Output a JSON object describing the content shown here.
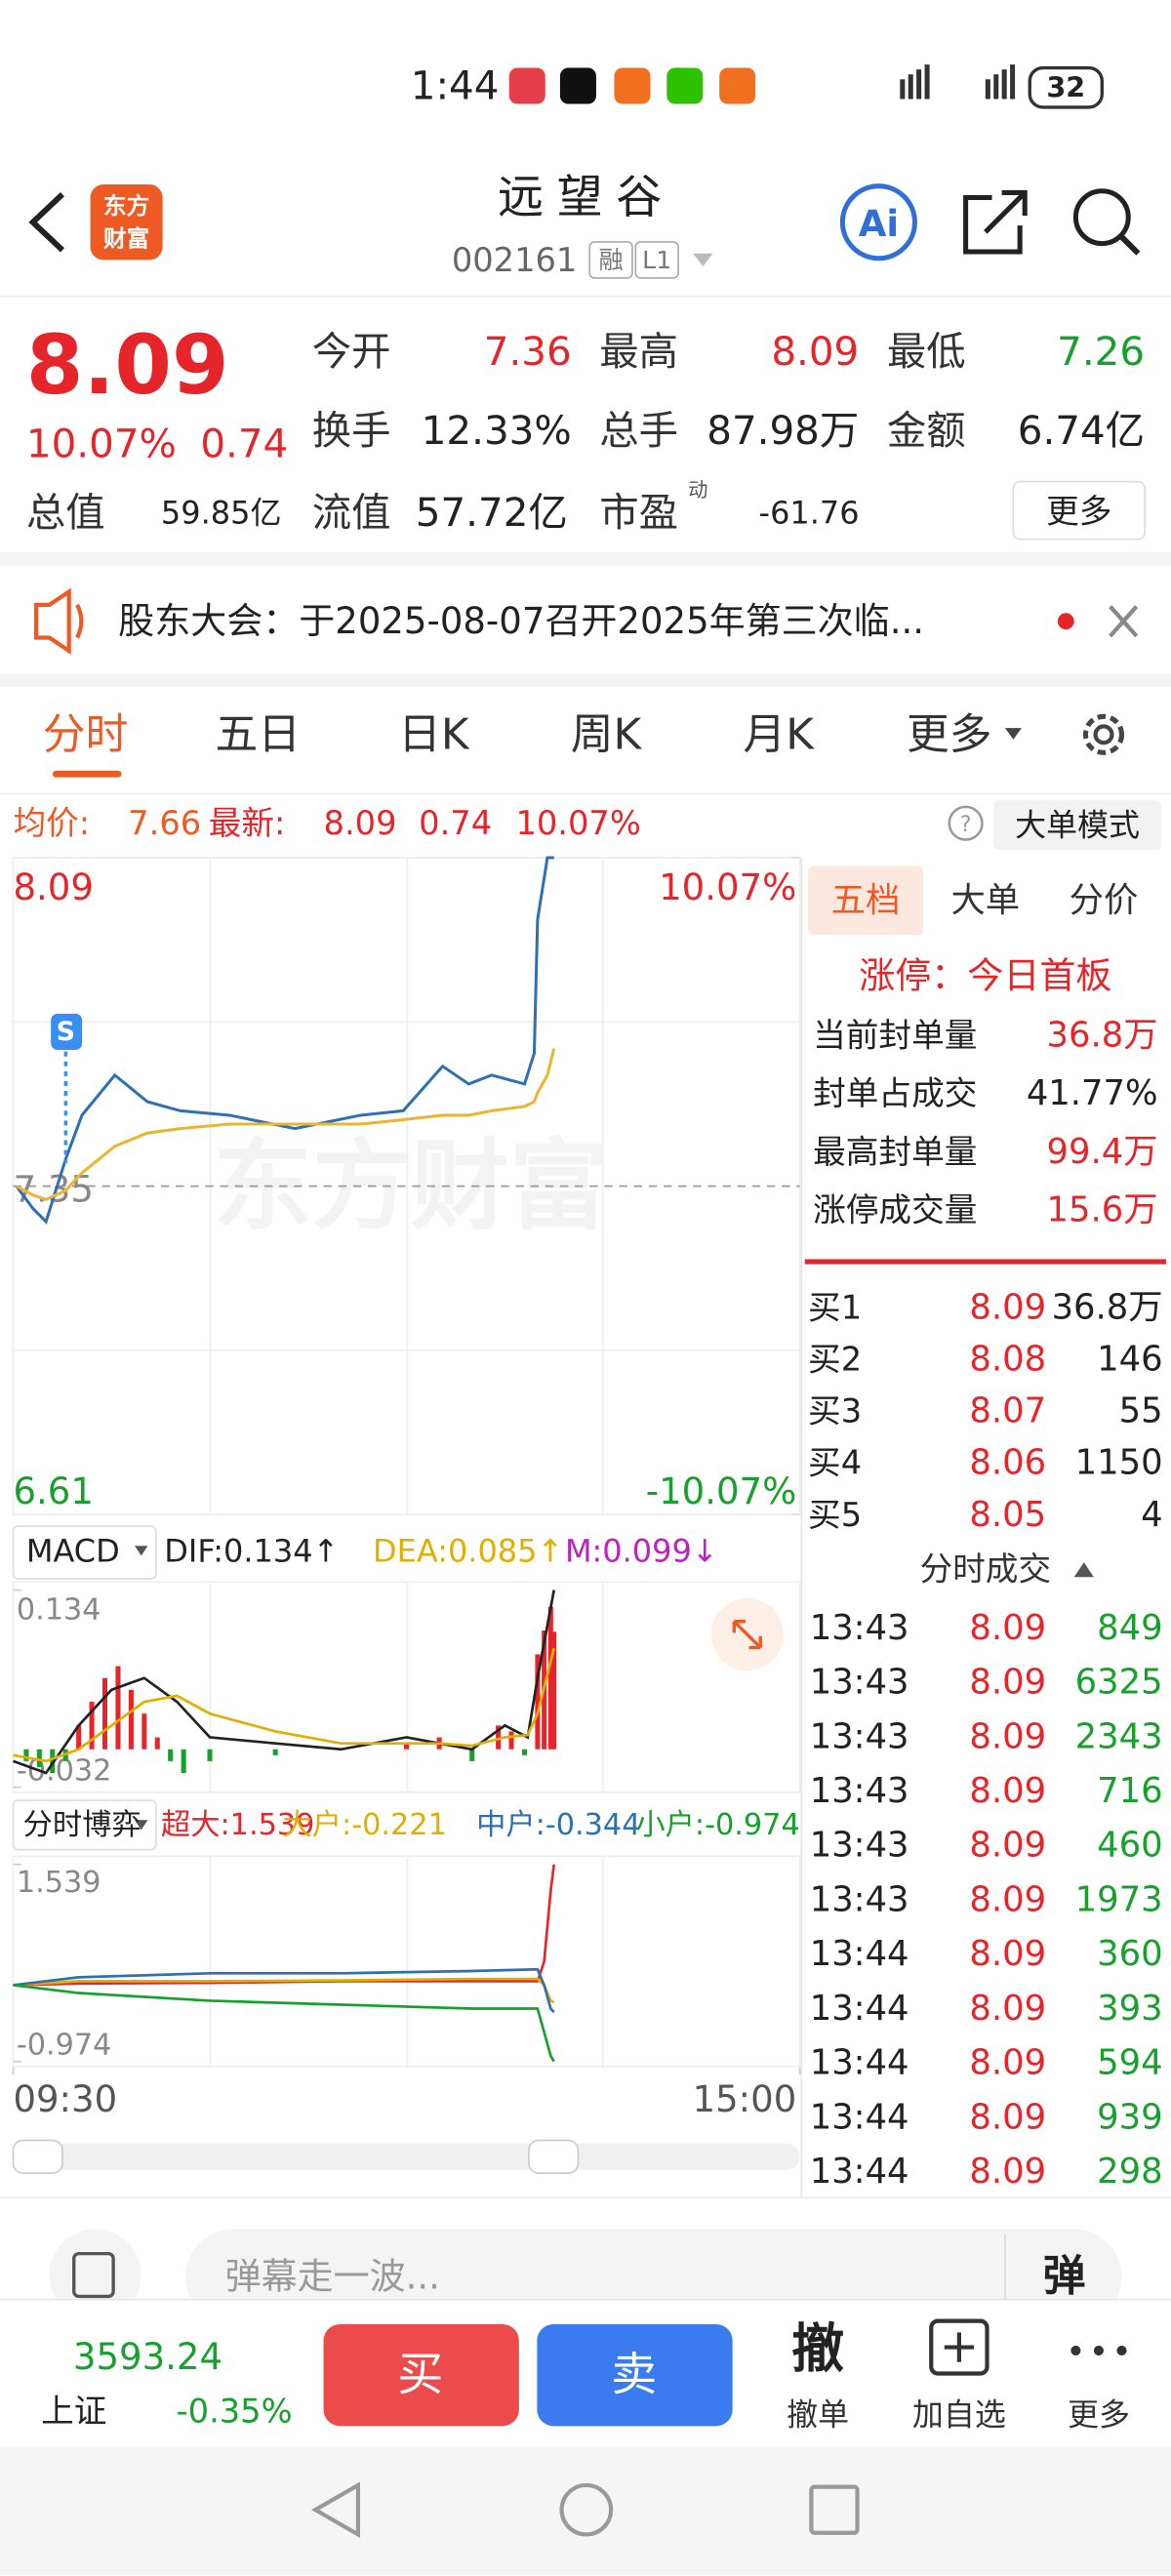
{
  "status_bar": {
    "time": "1:44",
    "battery": "32"
  },
  "header": {
    "logo": [
      "东方",
      "财富"
    ],
    "title": "远望谷",
    "code": "002161",
    "badges": [
      "融",
      "L1"
    ]
  },
  "quote": {
    "price": "8.09",
    "change_pct": "10.07%",
    "change": "0.74",
    "fields": [
      {
        "label": "今开",
        "value": "7.36",
        "color": "#e5252a"
      },
      {
        "label": "最高",
        "value": "8.09",
        "color": "#e5252a"
      },
      {
        "label": "最低",
        "value": "7.26",
        "color": "#17a02c"
      },
      {
        "label": "换手",
        "value": "12.33%"
      },
      {
        "label": "总手",
        "value": "87.98万"
      },
      {
        "label": "金额",
        "value": "6.74亿"
      },
      {
        "label": "总值",
        "value": "59.85亿"
      },
      {
        "label": "流值",
        "value": "57.72亿"
      },
      {
        "label": "市盈",
        "sup": "动",
        "value": "-61.76"
      }
    ],
    "more": "更多"
  },
  "notice": {
    "text": "股东大会：于2025-08-07召开2025年第三次临..."
  },
  "tabs": {
    "items": [
      "分时",
      "五日",
      "日K",
      "周K",
      "月K",
      "更多"
    ],
    "active": 0
  },
  "info": {
    "avg_label": "均价:",
    "avg": "7.66",
    "last_label": "最新:",
    "last": "8.09",
    "change": "0.74",
    "change_pct": "10.07%",
    "mode": "大单模式"
  },
  "intraday": {
    "watermark": "东方财富",
    "marker": "S",
    "xlim": [
      0,
      240
    ],
    "xticks": [
      {
        "value": 0,
        "label": "09:30"
      },
      {
        "value": 240,
        "label": "15:00"
      }
    ],
    "ylim": [
      6.61,
      8.09
    ],
    "yticks": [
      6.61,
      7.35,
      8.09
    ],
    "y2lim": [
      -10.07,
      10.07
    ],
    "y2ticks": [
      {
        "value": -10.07,
        "label": "-10.07%"
      },
      {
        "value": 10.07,
        "label": "10.07%"
      }
    ],
    "x": [
      1,
      6,
      10,
      16,
      21,
      31,
      41,
      51,
      66,
      86,
      106,
      119,
      131,
      139,
      146,
      156,
      159,
      160,
      163,
      165
    ],
    "series": [
      {
        "name": "价格",
        "color": "#2f6fb3",
        "values": [
          7.35,
          7.3,
          7.27,
          7.41,
          7.51,
          7.6,
          7.54,
          7.52,
          7.51,
          7.48,
          7.51,
          7.52,
          7.62,
          7.58,
          7.6,
          7.58,
          7.65,
          7.95,
          8.09,
          8.09
        ]
      },
      {
        "name": "均价",
        "color": "#e8b630",
        "values": [
          7.35,
          7.33,
          7.32,
          7.34,
          7.38,
          7.44,
          7.47,
          7.48,
          7.49,
          7.49,
          7.49,
          7.5,
          7.51,
          7.51,
          7.52,
          7.53,
          7.54,
          7.56,
          7.6,
          7.66
        ]
      }
    ]
  },
  "macd": {
    "label": "MACD",
    "legend": [
      {
        "text": "DIF:0.134↑",
        "color": "#222222"
      },
      {
        "text": "DEA:0.085↑",
        "color": "#e0b000"
      },
      {
        "text": "M:0.099↓",
        "color": "#c020c0"
      }
    ],
    "ylim": [
      -0.032,
      0.134
    ],
    "yticks": [
      -0.032,
      0.134
    ],
    "x": [
      0,
      10,
      20,
      30,
      40,
      50,
      60,
      80,
      100,
      120,
      130,
      140,
      150,
      157,
      160,
      165
    ],
    "series": [
      {
        "name": "DIF",
        "color": "#222222",
        "values": [
          -0.01,
          -0.02,
          0.02,
          0.05,
          0.06,
          0.04,
          0.01,
          0.005,
          0.0,
          0.01,
          0.005,
          0.0,
          0.02,
          0.01,
          0.06,
          0.134
        ]
      },
      {
        "name": "DEA",
        "color": "#e0b000",
        "values": [
          -0.005,
          -0.01,
          0.0,
          0.02,
          0.04,
          0.045,
          0.03,
          0.015,
          0.005,
          0.005,
          0.005,
          0.003,
          0.01,
          0.012,
          0.03,
          0.085
        ]
      }
    ],
    "histogram": {
      "x": [
        4,
        8,
        12,
        16,
        20,
        24,
        28,
        32,
        36,
        40,
        44,
        48,
        52,
        60,
        80,
        100,
        120,
        130,
        140,
        148,
        152,
        156,
        160,
        162,
        164,
        165
      ],
      "values": [
        -0.01,
        -0.015,
        -0.02,
        -0.01,
        0.02,
        0.04,
        0.06,
        0.07,
        0.05,
        0.03,
        0.01,
        -0.01,
        -0.02,
        -0.01,
        -0.005,
        0.0,
        0.005,
        0.01,
        -0.01,
        0.02,
        0.015,
        -0.005,
        0.08,
        0.1,
        0.12,
        0.099
      ]
    }
  },
  "flow": {
    "label": "分时博弈",
    "ylim": [
      -0.974,
      1.539
    ],
    "yticks": [
      -0.974,
      1.539
    ],
    "x": [
      0,
      20,
      60,
      100,
      140,
      160,
      162,
      164,
      165
    ],
    "series": [
      {
        "name": "超大:1.539",
        "color": "#e5252a",
        "values": [
          0,
          0.02,
          0.03,
          0.05,
          0.05,
          0.05,
          0.3,
          1.2,
          1.539
        ]
      },
      {
        "name": "大户:-0.221",
        "color": "#e0b000",
        "values": [
          0,
          0.05,
          0.05,
          0.06,
          0.08,
          0.08,
          0.0,
          -0.2,
          -0.221
        ]
      },
      {
        "name": "中户:-0.344",
        "color": "#2f6fb3",
        "values": [
          0,
          0.1,
          0.15,
          0.15,
          0.18,
          0.2,
          0.0,
          -0.3,
          -0.344
        ]
      },
      {
        "name": "小户:-0.974",
        "color": "#17a02c",
        "values": [
          0,
          -0.1,
          -0.2,
          -0.25,
          -0.3,
          -0.3,
          -0.6,
          -0.9,
          -0.974
        ]
      }
    ]
  },
  "order_panel": {
    "tabs": [
      "五档",
      "大单",
      "分价"
    ],
    "limit": "涨停：今日首板",
    "stats": [
      {
        "label": "当前封单量",
        "value": "36.8万",
        "color": "#e5252a"
      },
      {
        "label": "封单占成交",
        "value": "41.77%",
        "color": "#222222"
      },
      {
        "label": "最高封单量",
        "value": "99.4万",
        "color": "#e5252a"
      },
      {
        "label": "涨停成交量",
        "value": "15.6万",
        "color": "#e5252a"
      }
    ],
    "bids": [
      {
        "label": "买1",
        "price": "8.09",
        "volume": "36.8万"
      },
      {
        "label": "买2",
        "price": "8.08",
        "volume": "146"
      },
      {
        "label": "买3",
        "price": "8.07",
        "volume": "55"
      },
      {
        "label": "买4",
        "price": "8.06",
        "volume": "1150"
      },
      {
        "label": "买5",
        "price": "8.05",
        "volume": "4"
      }
    ],
    "trades_title": "分时成交",
    "trades": [
      [
        "13:43",
        "8.09",
        "849"
      ],
      [
        "13:43",
        "8.09",
        "6325"
      ],
      [
        "13:43",
        "8.09",
        "2343"
      ],
      [
        "13:43",
        "8.09",
        "716"
      ],
      [
        "13:43",
        "8.09",
        "460"
      ],
      [
        "13:43",
        "8.09",
        "1973"
      ],
      [
        "13:44",
        "8.09",
        "360"
      ],
      [
        "13:44",
        "8.09",
        "393"
      ],
      [
        "13:44",
        "8.09",
        "594"
      ],
      [
        "13:44",
        "8.09",
        "939"
      ],
      [
        "13:44",
        "8.09",
        "298"
      ]
    ]
  },
  "comment": {
    "placeholder": "弹幕走一波...",
    "button": "弹"
  },
  "bottom_bar": {
    "index_value": "3593.24",
    "index_name": "上证",
    "index_change": "-0.35%",
    "buy": "买",
    "sell": "卖",
    "cancel_icon": "撤",
    "cancel": "撤单",
    "watch": "加自选",
    "more": "更多"
  }
}
